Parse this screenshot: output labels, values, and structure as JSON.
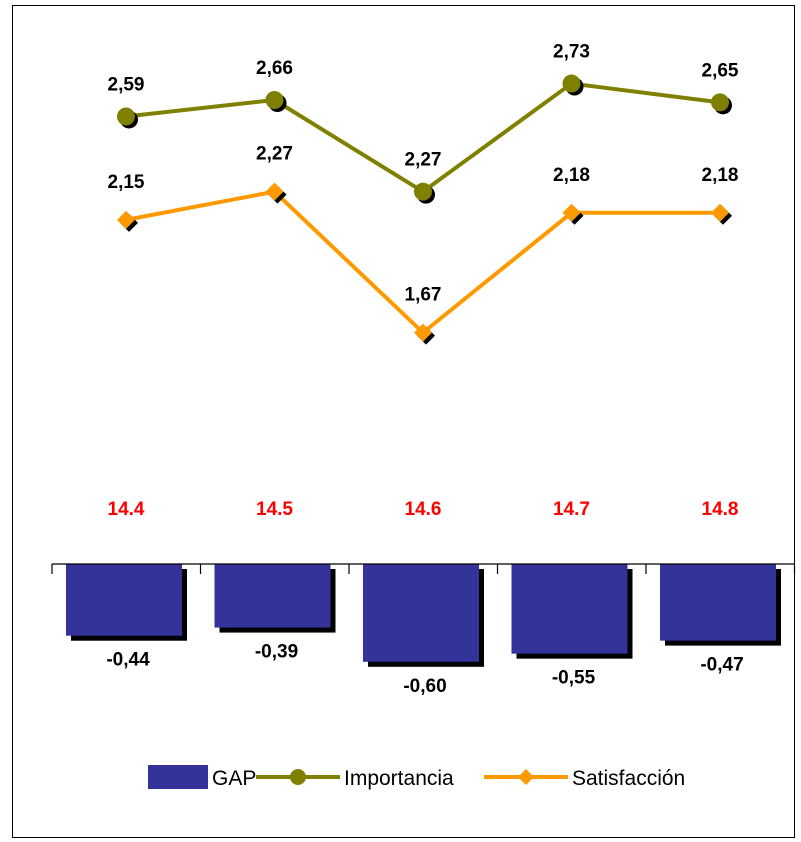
{
  "chart_data": {
    "type": "bar+line",
    "categories": [
      "14.4",
      "14.5",
      "14.6",
      "14.7",
      "14.8"
    ],
    "series": [
      {
        "name": "GAP",
        "kind": "bar",
        "values": [
          -0.44,
          -0.39,
          -0.6,
          -0.55,
          -0.47
        ],
        "labels": [
          "-0,44",
          "-0,39",
          "-0,60",
          "-0,55",
          "-0,47"
        ],
        "color": "#333399"
      },
      {
        "name": "Importancia",
        "kind": "line",
        "marker": "circle",
        "values": [
          2.59,
          2.66,
          2.27,
          2.73,
          2.65
        ],
        "labels": [
          "2,59",
          "2,66",
          "2,27",
          "2,73",
          "2,65"
        ],
        "color": "#808000"
      },
      {
        "name": "Satisfacción",
        "kind": "line",
        "marker": "diamond",
        "values": [
          2.15,
          2.27,
          1.67,
          2.18,
          2.18
        ],
        "labels": [
          "2,15",
          "2,27",
          "1,67",
          "2,18",
          "2,18"
        ],
        "color": "#FF9900"
      }
    ],
    "category_label_color": "#FF0000",
    "legend_position": "bottom",
    "grid": false
  }
}
